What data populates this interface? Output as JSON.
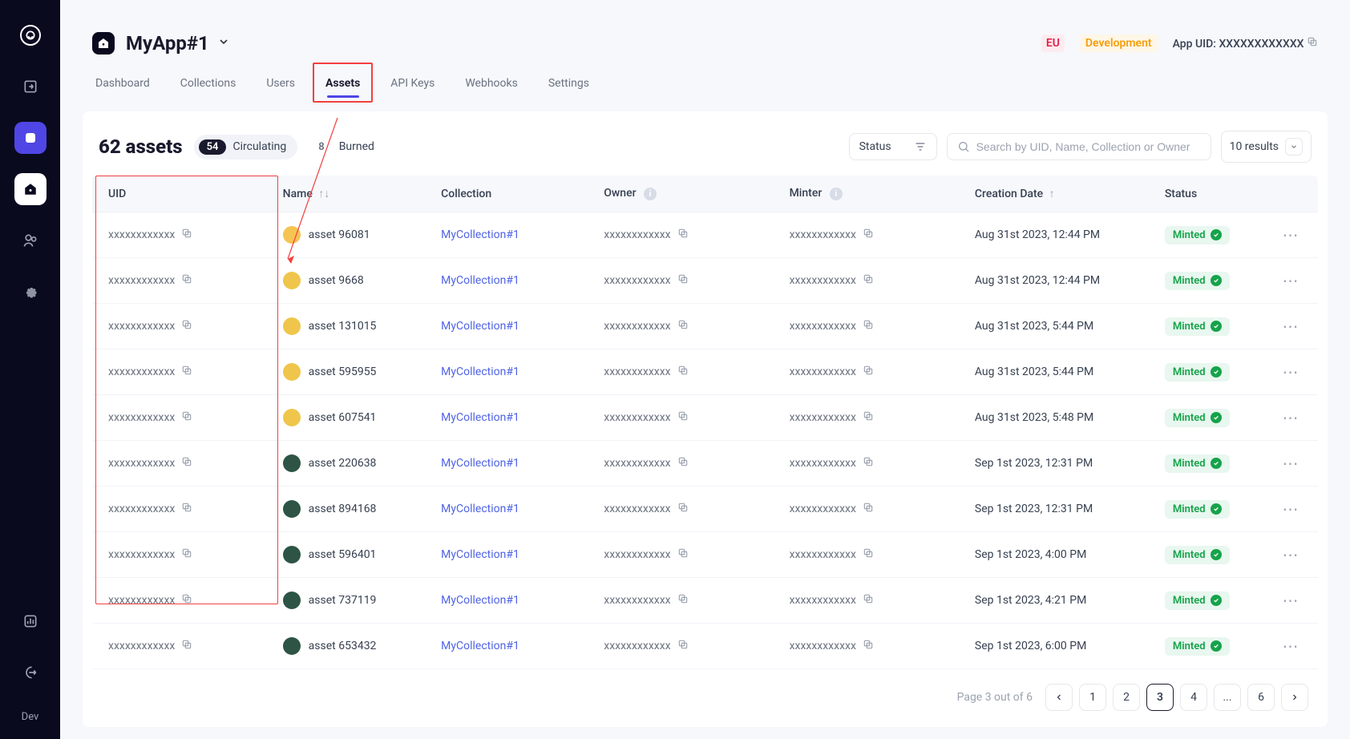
{
  "sidebar": {
    "dev_label": "Dev"
  },
  "header": {
    "app_name": "MyApp#1",
    "region": "EU",
    "environment": "Development",
    "app_uid_label": "App UID:",
    "app_uid_value": "XXXXXXXXXXXX"
  },
  "tabs": {
    "dashboard": "Dashboard",
    "collections": "Collections",
    "users": "Users",
    "assets": "Assets",
    "api_keys": "API Keys",
    "webhooks": "Webhooks",
    "settings": "Settings"
  },
  "toolbar": {
    "count_label": "62 assets",
    "circulating_count": "54",
    "circulating_label": "Circulating",
    "burned_count": "8",
    "burned_label": "Burned",
    "status_label": "Status",
    "search_placeholder": "Search by UID, Name, Collection or Owner",
    "results_label": "10 results"
  },
  "columns": {
    "uid": "UID",
    "name": "Name",
    "collection": "Collection",
    "owner": "Owner",
    "minter": "Minter",
    "creation": "Creation Date",
    "status": "Status"
  },
  "rows": [
    {
      "uid": "xxxxxxxxxxxx",
      "name": "asset 96081",
      "collection": "MyCollection#1",
      "owner": "xxxxxxxxxxxx",
      "minter": "xxxxxxxxxxxx",
      "date": "Aug 31st 2023, 12:44 PM",
      "status": "Minted",
      "thumb": "#f5c453"
    },
    {
      "uid": "xxxxxxxxxxxx",
      "name": "asset 9668",
      "collection": "MyCollection#1",
      "owner": "xxxxxxxxxxxx",
      "minter": "xxxxxxxxxxxx",
      "date": "Aug 31st 2023, 12:44 PM",
      "status": "Minted",
      "thumb": "#efc64b"
    },
    {
      "uid": "xxxxxxxxxxxx",
      "name": "asset 131015",
      "collection": "MyCollection#1",
      "owner": "xxxxxxxxxxxx",
      "minter": "xxxxxxxxxxxx",
      "date": "Aug 31st 2023, 5:44 PM",
      "status": "Minted",
      "thumb": "#efc64b"
    },
    {
      "uid": "xxxxxxxxxxxx",
      "name": "asset 595955",
      "collection": "MyCollection#1",
      "owner": "xxxxxxxxxxxx",
      "minter": "xxxxxxxxxxxx",
      "date": "Aug 31st 2023, 5:44 PM",
      "status": "Minted",
      "thumb": "#efc64b"
    },
    {
      "uid": "xxxxxxxxxxxx",
      "name": "asset 607541",
      "collection": "MyCollection#1",
      "owner": "xxxxxxxxxxxx",
      "minter": "xxxxxxxxxxxx",
      "date": "Aug 31st 2023, 5:48 PM",
      "status": "Minted",
      "thumb": "#efc64b"
    },
    {
      "uid": "xxxxxxxxxxxx",
      "name": "asset 220638",
      "collection": "MyCollection#1",
      "owner": "xxxxxxxxxxxx",
      "minter": "xxxxxxxxxxxx",
      "date": "Sep 1st 2023, 12:31 PM",
      "status": "Minted",
      "thumb": "#2d5444"
    },
    {
      "uid": "xxxxxxxxxxxx",
      "name": "asset 894168",
      "collection": "MyCollection#1",
      "owner": "xxxxxxxxxxxx",
      "minter": "xxxxxxxxxxxx",
      "date": "Sep 1st 2023, 12:31 PM",
      "status": "Minted",
      "thumb": "#2d5444"
    },
    {
      "uid": "xxxxxxxxxxxx",
      "name": "asset 596401",
      "collection": "MyCollection#1",
      "owner": "xxxxxxxxxxxx",
      "minter": "xxxxxxxxxxxx",
      "date": "Sep 1st 2023, 4:00 PM",
      "status": "Minted",
      "thumb": "#2d5444"
    },
    {
      "uid": "xxxxxxxxxxxx",
      "name": "asset 737119",
      "collection": "MyCollection#1",
      "owner": "xxxxxxxxxxxx",
      "minter": "xxxxxxxxxxxx",
      "date": "Sep 1st 2023, 4:21 PM",
      "status": "Minted",
      "thumb": "#2d5444"
    },
    {
      "uid": "xxxxxxxxxxxx",
      "name": "asset 653432",
      "collection": "MyCollection#1",
      "owner": "xxxxxxxxxxxx",
      "minter": "xxxxxxxxxxxx",
      "date": "Sep 1st 2023, 6:00 PM",
      "status": "Minted",
      "thumb": "#2d5444"
    }
  ],
  "pagination": {
    "info": "Page 3 out of 6",
    "pages": [
      "1",
      "2",
      "3",
      "4",
      "...",
      "6"
    ],
    "active": "3"
  }
}
